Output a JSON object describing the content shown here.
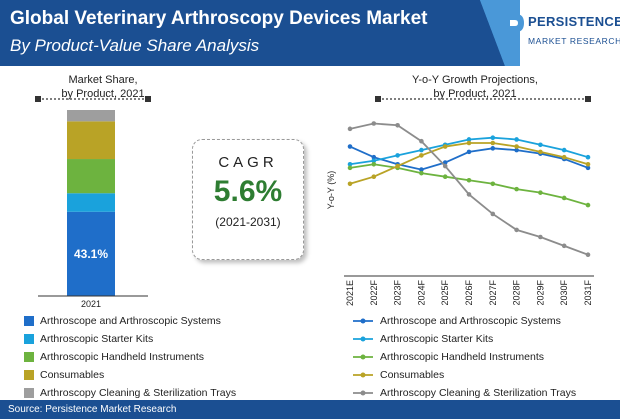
{
  "header": {
    "title": "Global Veterinary Arthroscopy Devices Market",
    "subtitle": "By Product-Value Share Analysis",
    "colors": {
      "dark": "#1b4f92",
      "light": "#4a98d8"
    }
  },
  "logo": {
    "main": "PERSISTENCE",
    "sub": "MARKET RESEARCH"
  },
  "cagr": {
    "label": "CAGR",
    "value": "5.6%",
    "period": "(2021-2031)",
    "value_color": "#2e7d32"
  },
  "source": "Source: Persistence Market Research",
  "chart_data": [
    {
      "type": "bar",
      "stacked": true,
      "title": "Market Share,\nby Product, 2021",
      "title_lines": [
        "Market Share,",
        "by Product, 2021"
      ],
      "categories": [
        "2021"
      ],
      "ylim": [
        0,
        100
      ],
      "series": [
        {
          "name": "Arthroscope and Arthroscopic Systems",
          "values": [
            43.1
          ],
          "color": "#1f6ec9",
          "label": "43.1%"
        },
        {
          "name": "Arthroscopic Starter Kits",
          "values": [
            9.5
          ],
          "color": "#1aa2dc"
        },
        {
          "name": "Arthroscopic Handheld Instruments",
          "values": [
            17.5
          ],
          "color": "#6db33f"
        },
        {
          "name": "Consumables",
          "values": [
            19.3
          ],
          "color": "#b9a326"
        },
        {
          "name": "Arthroscopy Cleaning & Sterilization Trays",
          "values": [
            5.8
          ],
          "color": "#9e9e9e"
        }
      ]
    },
    {
      "type": "line",
      "title": "Y-o-Y Growth Projections,\nby Product, 2021",
      "title_lines": [
        "Y-o-Y Growth Projections,",
        "by Product, 2021"
      ],
      "ylabel": "Y-o-Y (%)",
      "grid": false,
      "x": [
        "2021E",
        "2022F",
        "2023F",
        "2024F",
        "2025F",
        "2026F",
        "2027F",
        "2028F",
        "2029F",
        "2030F",
        "2031F"
      ],
      "series": [
        {
          "name": "Arthroscope and Arthroscopic Systems",
          "color": "#1f6ec9",
          "values": [
            7.3,
            6.7,
            6.3,
            6.0,
            6.4,
            7.0,
            7.2,
            7.1,
            6.9,
            6.6,
            6.1
          ]
        },
        {
          "name": "Arthroscopic Starter Kits",
          "color": "#1aa2dc",
          "values": [
            6.3,
            6.5,
            6.8,
            7.1,
            7.4,
            7.7,
            7.8,
            7.7,
            7.4,
            7.1,
            6.7
          ]
        },
        {
          "name": "Arthroscopic Handheld Instruments",
          "color": "#6db33f",
          "values": [
            6.1,
            6.3,
            6.1,
            5.8,
            5.6,
            5.4,
            5.2,
            4.9,
            4.7,
            4.4,
            4.0
          ]
        },
        {
          "name": "Consumables",
          "color": "#b9a326",
          "values": [
            5.2,
            5.6,
            6.2,
            6.8,
            7.3,
            7.5,
            7.5,
            7.3,
            7.0,
            6.7,
            6.3
          ]
        },
        {
          "name": "Arthroscopy Cleaning & Sterilization Trays",
          "color": "#8c8c8c",
          "values": [
            8.3,
            8.6,
            8.5,
            7.6,
            6.2,
            4.6,
            3.5,
            2.6,
            2.2,
            1.7,
            1.2
          ]
        }
      ]
    }
  ]
}
